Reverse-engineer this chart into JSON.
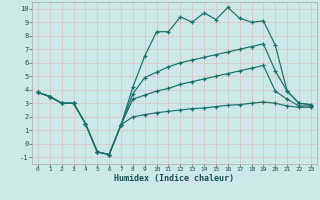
{
  "xlabel": "Humidex (Indice chaleur)",
  "bg_color": "#cce8e8",
  "grid_color": "#e8f4f4",
  "line_color": "#1a7068",
  "xlim": [
    -0.5,
    23.5
  ],
  "ylim": [
    -1.5,
    10.5
  ],
  "xticks": [
    0,
    1,
    2,
    3,
    4,
    5,
    6,
    7,
    8,
    9,
    10,
    11,
    12,
    13,
    14,
    15,
    16,
    17,
    18,
    19,
    20,
    21,
    22,
    23
  ],
  "yticks": [
    -1,
    0,
    1,
    2,
    3,
    4,
    5,
    6,
    7,
    8,
    9,
    10
  ],
  "line1_x": [
    0,
    1,
    2,
    3,
    4,
    5,
    6,
    7,
    8,
    9,
    10,
    11,
    12,
    13,
    14,
    15,
    16,
    17,
    18,
    19,
    20,
    21,
    22,
    23
  ],
  "line1_y": [
    3.8,
    3.5,
    3.0,
    3.0,
    1.5,
    -0.6,
    -0.8,
    1.4,
    4.2,
    6.5,
    8.3,
    8.3,
    9.4,
    9.0,
    9.7,
    9.2,
    10.1,
    9.3,
    9.0,
    9.1,
    7.3,
    3.9,
    3.0,
    2.9
  ],
  "line2_x": [
    0,
    1,
    2,
    3,
    4,
    5,
    6,
    7,
    8,
    9,
    10,
    11,
    12,
    13,
    14,
    15,
    16,
    17,
    18,
    19,
    20,
    21,
    22,
    23
  ],
  "line2_y": [
    3.8,
    3.5,
    3.0,
    3.0,
    1.5,
    -0.6,
    -0.8,
    1.4,
    3.7,
    4.9,
    5.3,
    5.7,
    6.0,
    6.2,
    6.4,
    6.6,
    6.8,
    7.0,
    7.2,
    7.4,
    5.4,
    3.9,
    3.0,
    2.9
  ],
  "line3_x": [
    0,
    1,
    2,
    3,
    4,
    5,
    6,
    7,
    8,
    9,
    10,
    11,
    12,
    13,
    14,
    15,
    16,
    17,
    18,
    19,
    20,
    21,
    22,
    23
  ],
  "line3_y": [
    3.8,
    3.5,
    3.0,
    3.0,
    1.5,
    -0.6,
    -0.8,
    1.4,
    3.3,
    3.6,
    3.9,
    4.1,
    4.4,
    4.6,
    4.8,
    5.0,
    5.2,
    5.4,
    5.6,
    5.8,
    3.9,
    3.3,
    2.8,
    2.8
  ],
  "line4_x": [
    0,
    1,
    2,
    3,
    4,
    5,
    6,
    7,
    8,
    9,
    10,
    11,
    12,
    13,
    14,
    15,
    16,
    17,
    18,
    19,
    20,
    21,
    22,
    23
  ],
  "line4_y": [
    3.8,
    3.5,
    3.0,
    3.0,
    1.5,
    -0.6,
    -0.8,
    1.4,
    2.0,
    2.15,
    2.3,
    2.4,
    2.5,
    2.6,
    2.65,
    2.75,
    2.85,
    2.9,
    3.0,
    3.1,
    3.0,
    2.8,
    2.7,
    2.7
  ]
}
